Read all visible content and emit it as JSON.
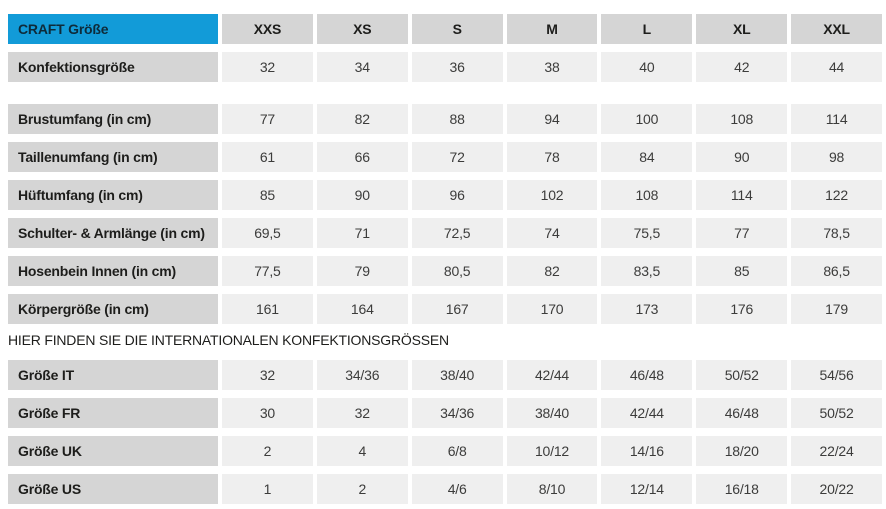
{
  "colors": {
    "brand_blue": "#129bd8",
    "label_gray": "#d5d5d5",
    "value_gray": "#efefef",
    "label_text": "#1d1d1b",
    "value_text": "#3c3c3b"
  },
  "size_chart": {
    "corner_label": "CRAFT Größe",
    "sizes": [
      "XXS",
      "XS",
      "S",
      "M",
      "L",
      "XL",
      "XXL"
    ],
    "groups": [
      {
        "rows": [
          {
            "label": "Konfektionsgröße",
            "values": [
              "32",
              "34",
              "36",
              "38",
              "40",
              "42",
              "44"
            ]
          }
        ]
      },
      {
        "rows": [
          {
            "label": "Brustumfang (in cm)",
            "values": [
              "77",
              "82",
              "88",
              "94",
              "100",
              "108",
              "114"
            ]
          },
          {
            "label": "Taillenumfang (in cm)",
            "values": [
              "61",
              "66",
              "72",
              "78",
              "84",
              "90",
              "98"
            ]
          },
          {
            "label": "Hüftumfang (in cm)",
            "values": [
              "85",
              "90",
              "96",
              "102",
              "108",
              "114",
              "122"
            ]
          },
          {
            "label": "Schulter- & Armlänge (in cm)",
            "values": [
              "69,5",
              "71",
              "72,5",
              "74",
              "75,5",
              "77",
              "78,5"
            ]
          },
          {
            "label": "Hosenbein Innen (in cm)",
            "values": [
              "77,5",
              "79",
              "80,5",
              "82",
              "83,5",
              "85",
              "86,5"
            ]
          },
          {
            "label": "Körpergröße (in cm)",
            "values": [
              "161",
              "164",
              "167",
              "170",
              "173",
              "176",
              "179"
            ]
          }
        ]
      }
    ]
  },
  "international": {
    "heading": "HIER FINDEN SIE DIE INTERNATIONALEN KONFEKTIONSGRÖSSEN",
    "rows": [
      {
        "label": "Größe IT",
        "values": [
          "32",
          "34/36",
          "38/40",
          "42/44",
          "46/48",
          "50/52",
          "54/56"
        ]
      },
      {
        "label": "Größe FR",
        "values": [
          "30",
          "32",
          "34/36",
          "38/40",
          "42/44",
          "46/48",
          "50/52"
        ]
      },
      {
        "label": "Größe UK",
        "values": [
          "2",
          "4",
          "6/8",
          "10/12",
          "14/16",
          "18/20",
          "22/24"
        ]
      },
      {
        "label": "Größe US",
        "values": [
          "1",
          "2",
          "4/6",
          "8/10",
          "12/14",
          "16/18",
          "20/22"
        ]
      }
    ]
  },
  "chart_data": {
    "type": "table",
    "title": "CRAFT Größe",
    "columns": [
      "CRAFT Größe",
      "XXS",
      "XS",
      "S",
      "M",
      "L",
      "XL",
      "XXL"
    ],
    "rows": [
      [
        "Konfektionsgröße",
        "32",
        "34",
        "36",
        "38",
        "40",
        "42",
        "44"
      ],
      [
        "Brustumfang (in cm)",
        "77",
        "82",
        "88",
        "94",
        "100",
        "108",
        "114"
      ],
      [
        "Taillenumfang (in cm)",
        "61",
        "66",
        "72",
        "78",
        "84",
        "90",
        "98"
      ],
      [
        "Hüftumfang (in cm)",
        "85",
        "90",
        "96",
        "102",
        "108",
        "114",
        "122"
      ],
      [
        "Schulter- & Armlänge (in cm)",
        "69,5",
        "71",
        "72,5",
        "74",
        "75,5",
        "77",
        "78,5"
      ],
      [
        "Hosenbein Innen (in cm)",
        "77,5",
        "79",
        "80,5",
        "82",
        "83,5",
        "85",
        "86,5"
      ],
      [
        "Körpergröße (in cm)",
        "161",
        "164",
        "167",
        "170",
        "173",
        "176",
        "179"
      ],
      [
        "Größe IT",
        "32",
        "34/36",
        "38/40",
        "42/44",
        "46/48",
        "50/52",
        "54/56"
      ],
      [
        "Größe FR",
        "30",
        "32",
        "34/36",
        "38/40",
        "42/44",
        "46/48",
        "50/52"
      ],
      [
        "Größe UK",
        "2",
        "4",
        "6/8",
        "10/12",
        "14/16",
        "18/20",
        "22/24"
      ],
      [
        "Größe US",
        "1",
        "2",
        "4/6",
        "8/10",
        "12/14",
        "16/18",
        "20/22"
      ]
    ]
  }
}
